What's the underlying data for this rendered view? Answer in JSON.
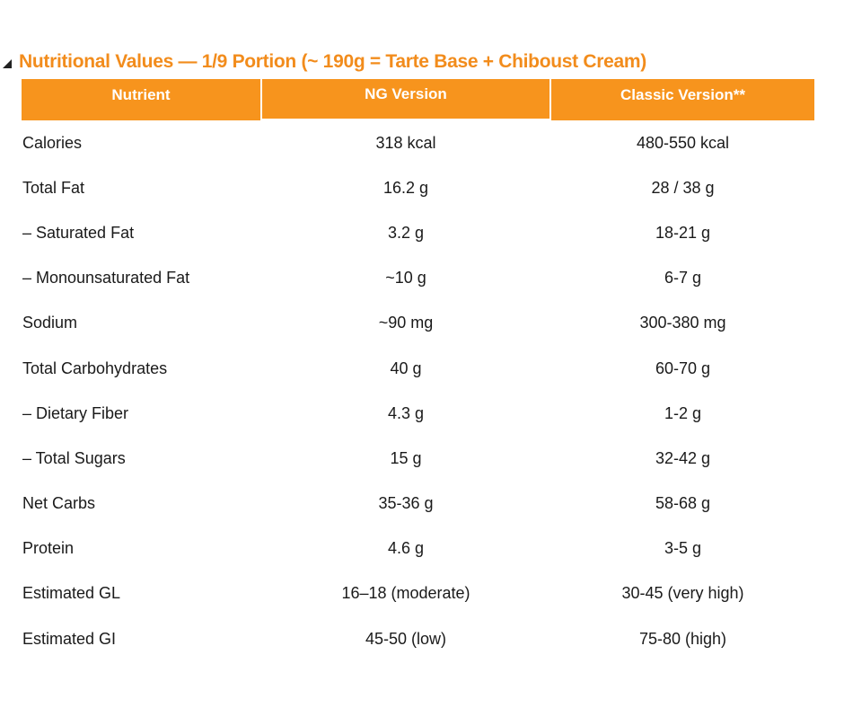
{
  "section": {
    "title": "Nutritional Values — 1/9 Portion (~ 190g = Tarte Base + Chiboust Cream)"
  },
  "table": {
    "headers": [
      "Nutrient",
      "NG Version",
      "Classic Version**"
    ],
    "rows": [
      {
        "nutrient": "Calories",
        "ng": "318 kcal",
        "classic": "480-550 kcal"
      },
      {
        "nutrient": "Total Fat",
        "ng": "16.2 g",
        "classic": "28 / 38 g"
      },
      {
        "nutrient": "– Saturated Fat",
        "ng": "3.2 g",
        "classic": "18-21 g"
      },
      {
        "nutrient": "– Monounsaturated Fat",
        "ng": "~10 g",
        "classic": "6-7 g"
      },
      {
        "nutrient": "Sodium",
        "ng": "~90 mg",
        "classic": "300-380 mg"
      },
      {
        "nutrient": "Total Carbohydrates",
        "ng": "40 g",
        "classic": "60-70 g"
      },
      {
        "nutrient": "– Dietary Fiber",
        "ng": "4.3 g",
        "classic": "1-2 g"
      },
      {
        "nutrient": "– Total Sugars",
        "ng": "15 g",
        "classic": "32-42 g"
      },
      {
        "nutrient": "Net Carbs",
        "ng": "35-36 g",
        "classic": "58-68 g"
      },
      {
        "nutrient": "Protein",
        "ng": "4.6 g",
        "classic": "3-5 g"
      },
      {
        "nutrient": "Estimated GL",
        "ng": "16–18 (moderate)",
        "classic": "30-45 (very high)"
      },
      {
        "nutrient": "Estimated GI",
        "ng": "45-50 (low)",
        "classic": "75-80 (high)"
      }
    ]
  },
  "colors": {
    "accent": "#f7941d",
    "title": "#f28c1c",
    "header_text": "#ffffff",
    "body_text": "#1a1a1a"
  },
  "icons": {
    "collapse": "collapse-triangle-icon"
  }
}
